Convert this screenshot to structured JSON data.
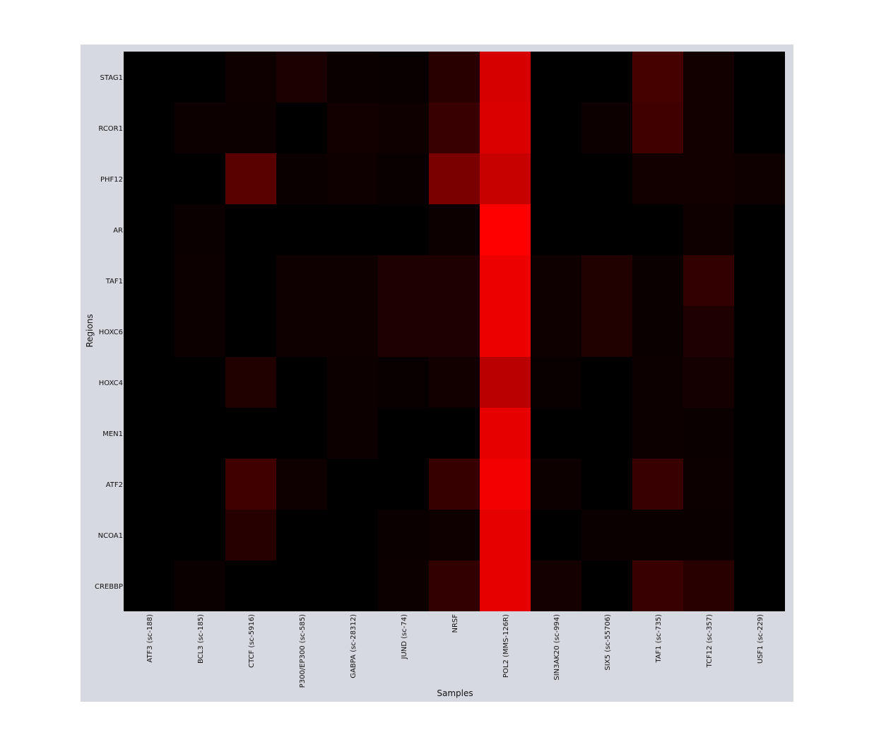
{
  "chart_data": {
    "type": "heatmap",
    "xlabel": "Samples",
    "ylabel": "Regions",
    "colormap": {
      "low": "#000000",
      "high": "#ff0000"
    },
    "value_range": [
      0,
      1
    ],
    "columns": [
      "ATF3 (sc-188)",
      "BCL3 (sc-185)",
      "CTCF (sc-5916)",
      "P300/EP300 (sc-585)",
      "GABPA (sc-28312)",
      "JUND (sc-74)",
      "NRSF",
      "POL2 (MMS-126R)",
      "SIN3AK20 (sc-994)",
      "SIX5 (sc-55706)",
      "TAF1 (sc-735)",
      "TCF12 (sc-357)",
      "USF1 (sc-229)"
    ],
    "rows": [
      "STAG1",
      "RCOR1",
      "PHF12",
      "AR",
      "TAF1",
      "HOXC6",
      "HOXC4",
      "MEN1",
      "ATF2",
      "NCOA1",
      "CREBBP"
    ],
    "values": [
      [
        0.0,
        0.0,
        0.06,
        0.1,
        0.04,
        0.03,
        0.16,
        0.84,
        0.0,
        0.0,
        0.27,
        0.07,
        0.0
      ],
      [
        0.0,
        0.05,
        0.05,
        0.0,
        0.07,
        0.06,
        0.22,
        0.86,
        0.0,
        0.05,
        0.25,
        0.07,
        0.0
      ],
      [
        0.0,
        0.0,
        0.35,
        0.04,
        0.06,
        0.03,
        0.48,
        0.78,
        0.0,
        0.0,
        0.07,
        0.07,
        0.06
      ],
      [
        0.0,
        0.04,
        0.0,
        0.0,
        0.0,
        0.0,
        0.05,
        1.0,
        0.0,
        0.0,
        0.0,
        0.06,
        0.0
      ],
      [
        0.0,
        0.05,
        0.0,
        0.06,
        0.06,
        0.12,
        0.12,
        0.93,
        0.06,
        0.13,
        0.04,
        0.2,
        0.0
      ],
      [
        0.0,
        0.05,
        0.0,
        0.06,
        0.06,
        0.12,
        0.12,
        0.93,
        0.06,
        0.13,
        0.04,
        0.12,
        0.0
      ],
      [
        0.0,
        0.0,
        0.13,
        0.0,
        0.05,
        0.03,
        0.07,
        0.73,
        0.03,
        0.0,
        0.05,
        0.08,
        0.0
      ],
      [
        0.0,
        0.0,
        0.0,
        0.0,
        0.05,
        0.0,
        0.0,
        0.9,
        0.0,
        0.0,
        0.05,
        0.04,
        0.0
      ],
      [
        0.0,
        0.0,
        0.25,
        0.06,
        0.0,
        0.0,
        0.21,
        0.95,
        0.05,
        0.0,
        0.22,
        0.05,
        0.0
      ],
      [
        0.0,
        0.0,
        0.15,
        0.0,
        0.0,
        0.04,
        0.06,
        0.9,
        0.0,
        0.04,
        0.04,
        0.04,
        0.0
      ],
      [
        0.0,
        0.04,
        0.0,
        0.0,
        0.0,
        0.05,
        0.2,
        0.9,
        0.08,
        0.0,
        0.22,
        0.16,
        0.0
      ]
    ]
  }
}
